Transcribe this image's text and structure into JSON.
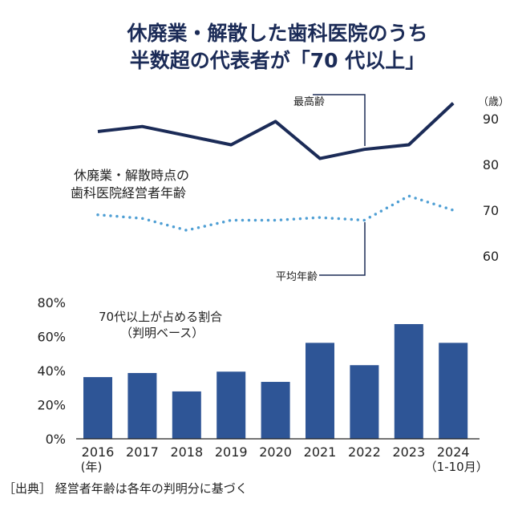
{
  "chart_data": [
    {
      "type": "line",
      "title": "休廃業・解散した歯科医院のうち 半数超の代表者が「70 代以上」",
      "title_lines": [
        "休廃業・解散した歯科医院のうち",
        "半数超の代表者が「70 代以上」"
      ],
      "label": [
        "休廃業・解散時点の",
        "歯科医院経営者年齢"
      ],
      "ylabel": "（歳）",
      "ylim": [
        60,
        90
      ],
      "yticks": [
        "90",
        "80",
        "70",
        "60"
      ],
      "x": [
        "2016",
        "2017",
        "2018",
        "2019",
        "2020",
        "2021",
        "2022",
        "2023",
        "2024"
      ],
      "series": [
        {
          "name": "最高齢",
          "style": "solid",
          "color": "#1b2b57",
          "values": [
            87.2,
            88.3,
            86.3,
            84.3,
            89.4,
            81.3,
            83.3,
            84.3,
            93.4
          ]
        },
        {
          "name": "平均年齢",
          "style": "dotted",
          "color": "#4f9fd4",
          "values": [
            69.0,
            68.2,
            65.6,
            67.8,
            67.8,
            68.4,
            67.8,
            73.1,
            70.0
          ]
        }
      ]
    },
    {
      "type": "bar",
      "title": [
        "70代以上が占める割合",
        "（判明ベース）"
      ],
      "categories": [
        "2016",
        "2017",
        "2018",
        "2019",
        "2020",
        "2021",
        "2022",
        "2023",
        "2024"
      ],
      "category_sublabels": [
        "(年)",
        "",
        "",
        "",
        "",
        "",
        "",
        "",
        "（1-10月）"
      ],
      "values": [
        36.2,
        38.6,
        27.8,
        39.4,
        33.4,
        56.3,
        43.2,
        67.3,
        56.3
      ],
      "unit": "%",
      "ylim": [
        0,
        80
      ],
      "yticks": [
        "80%",
        "60%",
        "40%",
        "20%",
        "0%"
      ],
      "color": "#2e5596"
    }
  ],
  "footnote": "［出典］ 経営者年齢は各年の判明分に基づく"
}
